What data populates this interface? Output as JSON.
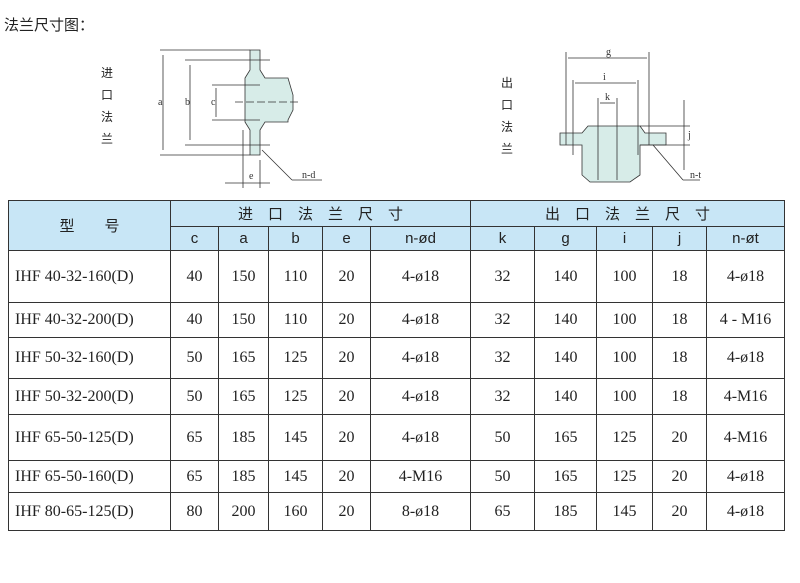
{
  "title": "法兰尺寸图：",
  "inlet_label": "进口法兰",
  "outlet_label": "出口法兰",
  "drawing_labels": {
    "a": "a",
    "b": "b",
    "c": "c",
    "e": "e",
    "nd": "n-d",
    "g": "g",
    "i": "i",
    "k": "k",
    "j": "j",
    "nt": "n-t"
  },
  "table": {
    "model_header": "型　　号",
    "inlet_header": "进　口　法　兰　尺　寸",
    "outlet_header": "出　口　法　兰　尺　寸",
    "columns": [
      "c",
      "a",
      "b",
      "e",
      "n-ød",
      "k",
      "g",
      "i",
      "j",
      "n-øt"
    ],
    "rows": [
      [
        "IHF 40-32-160(D)",
        "40",
        "150",
        "110",
        "20",
        "4-ø18",
        "32",
        "140",
        "100",
        "18",
        "4-ø18"
      ],
      [
        "IHF 40-32-200(D)",
        "40",
        "150",
        "110",
        "20",
        "4-ø18",
        "32",
        "140",
        "100",
        "18",
        "4 - M16"
      ],
      [
        "IHF 50-32-160(D)",
        "50",
        "165",
        "125",
        "20",
        "4-ø18",
        "32",
        "140",
        "100",
        "18",
        "4-ø18"
      ],
      [
        "IHF 50-32-200(D)",
        "50",
        "165",
        "125",
        "20",
        "4-ø18",
        "32",
        "140",
        "100",
        "18",
        "4-M16"
      ],
      [
        "IHF 65-50-125(D)",
        "65",
        "185",
        "145",
        "20",
        "4-ø18",
        "50",
        "165",
        "125",
        "20",
        "4-M16"
      ],
      [
        "IHF 65-50-160(D)",
        "65",
        "185",
        "145",
        "20",
        "4-M16",
        "50",
        "165",
        "125",
        "20",
        "4-ø18"
      ],
      [
        "IHF 80-65-125(D)",
        "80",
        "200",
        "160",
        "20",
        "8-ø18",
        "65",
        "185",
        "145",
        "20",
        "4-ø18"
      ]
    ]
  }
}
